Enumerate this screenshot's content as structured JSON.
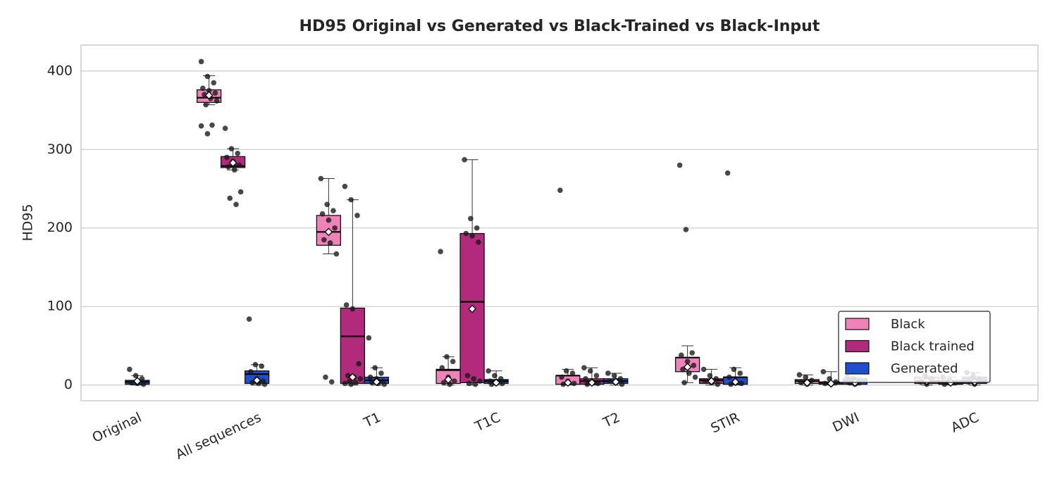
{
  "chart_data": {
    "type": "box",
    "title": "HD95 Original vs Generated vs Black-Trained vs Black-Input",
    "y_label": "HD95",
    "categories": [
      "Original",
      "All sequences",
      "T1",
      "T1C",
      "T2",
      "STIR",
      "DWI",
      "ADC"
    ],
    "ylim": [
      -20,
      433
    ],
    "yticks": [
      0,
      100,
      200,
      300,
      400
    ],
    "grid": true,
    "legend": "lower right",
    "series": [
      {
        "name": "Black",
        "color": "#ee82b9",
        "boxes": [
          null,
          {
            "low": 357,
            "q1": 360,
            "median": 366,
            "q3": 376,
            "high": 394,
            "mean": 369,
            "points": [
              412,
              393,
              385,
              378,
              375,
              372,
              370,
              365,
              362,
              357,
              331,
              330,
              320
            ]
          },
          {
            "low": 167,
            "q1": 178,
            "median": 195,
            "q3": 216,
            "high": 263,
            "mean": 195,
            "points": [
              263,
              230,
              222,
              218,
              210,
              200,
              185,
              181,
              167,
              10,
              4
            ]
          },
          {
            "low": 0,
            "q1": 2,
            "median": 19,
            "q3": 20,
            "high": 36,
            "mean": 7,
            "points": [
              170,
              36,
              30,
              22,
              10,
              5,
              3,
              1
            ]
          },
          {
            "low": 0,
            "q1": 1,
            "median": 12,
            "q3": 12,
            "high": 20,
            "mean": 3,
            "points": [
              248,
              18,
              15,
              10,
              5,
              2,
              1
            ]
          },
          {
            "low": 3,
            "q1": 17,
            "median": 35,
            "q3": 35,
            "high": 50,
            "mean": 23,
            "points": [
              280,
              198,
              41,
              38,
              30,
              25,
              20,
              15,
              10,
              3
            ]
          },
          {
            "low": 0,
            "q1": 2,
            "median": 5,
            "q3": 7,
            "high": 13,
            "mean": 3,
            "points": [
              13,
              10,
              6,
              3,
              1
            ]
          },
          {
            "low": 0,
            "q1": 2,
            "median": 5,
            "q3": 10,
            "high": 18,
            "mean": 5,
            "points": [
              18,
              12,
              8,
              4,
              1
            ]
          }
        ]
      },
      {
        "name": "Black trained",
        "color": "#b12a7c",
        "boxes": [
          null,
          {
            "low": 274,
            "q1": 277,
            "median": 279,
            "q3": 291,
            "high": 301,
            "mean": 283,
            "points": [
              327,
              301,
              295,
              290,
              285,
              280,
              278,
              274,
              246,
              238,
              230
            ]
          },
          {
            "low": 0,
            "q1": 2,
            "median": 62,
            "q3": 98,
            "high": 236,
            "mean": 10,
            "points": [
              253,
              236,
              216,
              102,
              97,
              27,
              12,
              10,
              8,
              5,
              3,
              2,
              1
            ]
          },
          {
            "low": 0,
            "q1": 3,
            "median": 106,
            "q3": 193,
            "high": 287,
            "mean": 97,
            "points": [
              287,
              212,
              200,
              193,
              190,
              182,
              12,
              8,
              5,
              2,
              1
            ]
          },
          {
            "low": 0,
            "q1": 1,
            "median": 5,
            "q3": 8,
            "high": 22,
            "mean": 3,
            "points": [
              22,
              18,
              12,
              8,
              4,
              2,
              1
            ]
          },
          {
            "low": 0,
            "q1": 2,
            "median": 6,
            "q3": 8,
            "high": 20,
            "mean": 5,
            "points": [
              20,
              12,
              8,
              5,
              3,
              1
            ]
          },
          {
            "low": 0,
            "q1": 1,
            "median": 3,
            "q3": 4,
            "high": 17,
            "mean": 2,
            "points": [
              17,
              8,
              4,
              2,
              1
            ]
          },
          {
            "low": 0,
            "q1": 1,
            "median": 3,
            "q3": 6,
            "high": 10,
            "mean": 3,
            "points": [
              10,
              6,
              3,
              1
            ]
          }
        ]
      },
      {
        "name": "Generated",
        "color": "#1f4fcc",
        "boxes": [
          {
            "low": 0,
            "q1": 1,
            "median": 4,
            "q3": 6,
            "high": 12,
            "mean": 5,
            "points": [
              20,
              12,
              8,
              3,
              2,
              1
            ]
          },
          {
            "low": 0,
            "q1": 2,
            "median": 14,
            "q3": 18,
            "high": 26,
            "mean": 6,
            "points": [
              84,
              26,
              24,
              17,
              8,
              5,
              3,
              2,
              1
            ]
          },
          {
            "low": 0,
            "q1": 2,
            "median": 6,
            "q3": 10,
            "high": 22,
            "mean": 4,
            "points": [
              60,
              22,
              15,
              10,
              8,
              5,
              3,
              2,
              1
            ]
          },
          {
            "low": 0,
            "q1": 2,
            "median": 5,
            "q3": 7,
            "high": 18,
            "mean": 3,
            "points": [
              18,
              12,
              8,
              5,
              3,
              2,
              1
            ]
          },
          {
            "low": 0,
            "q1": 2,
            "median": 5,
            "q3": 8,
            "high": 15,
            "mean": 4,
            "points": [
              15,
              12,
              8,
              5,
              3,
              1
            ]
          },
          {
            "low": 0,
            "q1": 1,
            "median": 10,
            "q3": 10,
            "high": 22,
            "mean": 4,
            "points": [
              270,
              20,
              15,
              10,
              5,
              2,
              1
            ]
          },
          {
            "low": 0,
            "q1": 1,
            "median": 5,
            "q3": 8,
            "high": 10,
            "mean": 3,
            "points": [
              10,
              8,
              5,
              3,
              1
            ]
          },
          {
            "low": 0,
            "q1": 2,
            "median": 5,
            "q3": 10,
            "high": 16,
            "mean": 4,
            "points": [
              16,
              12,
              8,
              4,
              1
            ]
          }
        ]
      }
    ]
  }
}
